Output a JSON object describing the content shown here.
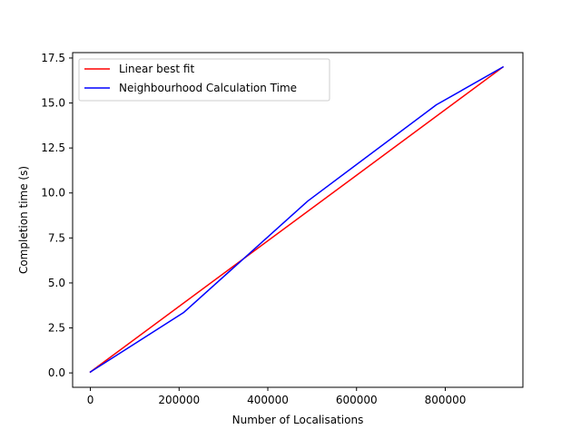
{
  "chart_data": {
    "type": "line",
    "title": "",
    "xlabel": "Number of Localisations",
    "ylabel": "Completion time (s)",
    "xlim": [
      -40000,
      975000
    ],
    "ylim": [
      -0.8,
      17.8
    ],
    "xticks": [
      0,
      200000,
      400000,
      600000,
      800000
    ],
    "xtick_labels": [
      "0",
      "200000",
      "400000",
      "600000",
      "800000"
    ],
    "yticks": [
      0.0,
      2.5,
      5.0,
      7.5,
      10.0,
      12.5,
      15.0,
      17.5
    ],
    "ytick_labels": [
      "0.0",
      "2.5",
      "5.0",
      "7.5",
      "10.0",
      "12.5",
      "15.0",
      "17.5"
    ],
    "grid": false,
    "legend_position": "upper-left",
    "series": [
      {
        "name": "Linear best fit",
        "color": "#ff0000",
        "x": [
          0,
          930000
        ],
        "y": [
          0.05,
          17.0
        ]
      },
      {
        "name": "Neighbourhood Calculation Time",
        "color": "#0000ff",
        "x": [
          0,
          210000,
          490000,
          780000,
          930000
        ],
        "y": [
          0.05,
          3.35,
          9.55,
          14.9,
          17.0
        ]
      }
    ]
  }
}
